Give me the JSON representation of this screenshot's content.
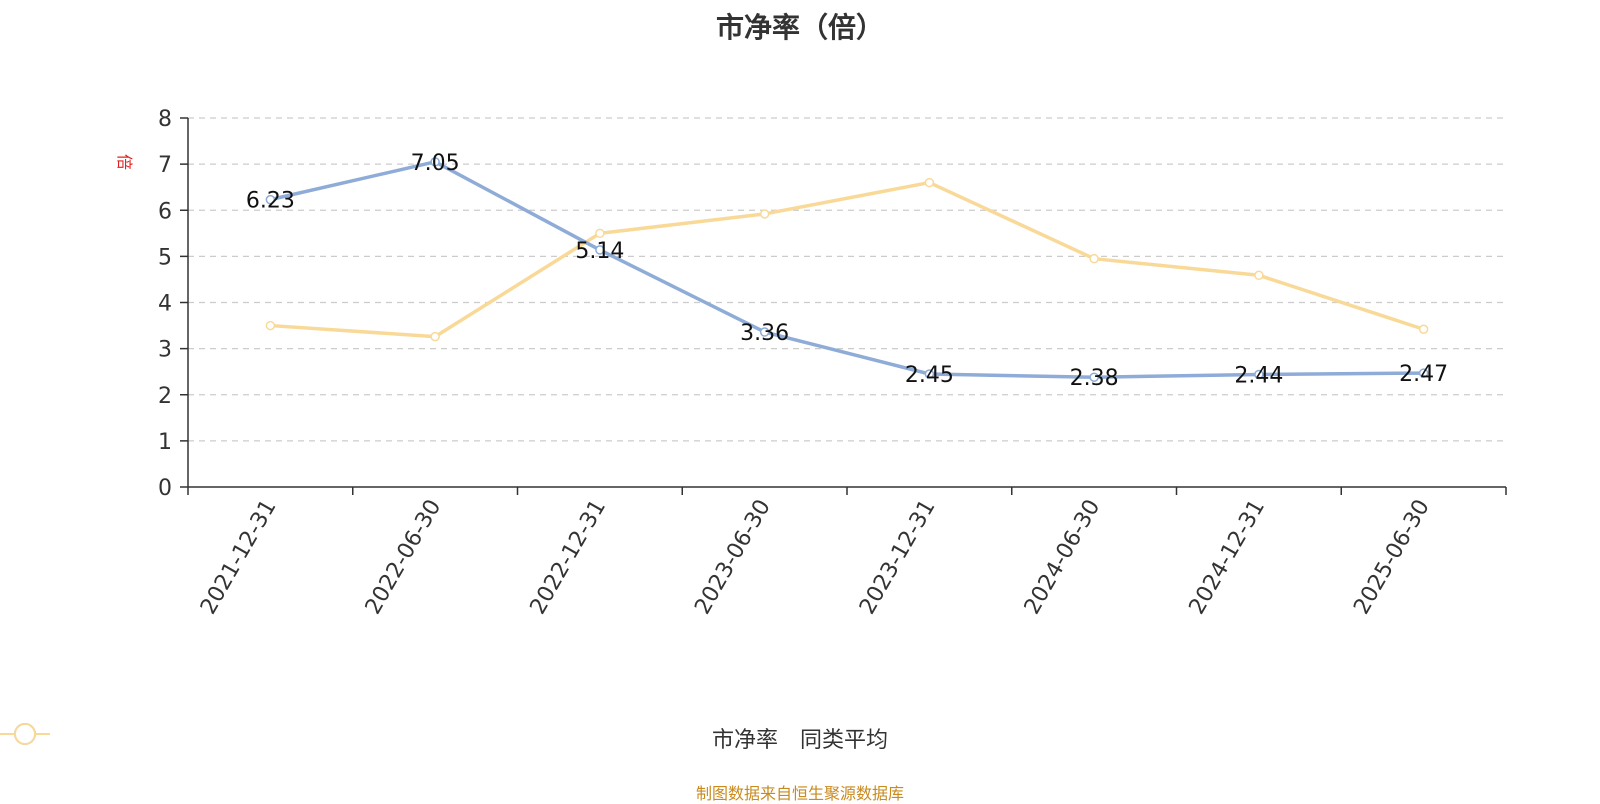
{
  "chart_data": {
    "type": "line",
    "title": "市净率（倍）",
    "ylabel": "倍",
    "categories": [
      "2021-12-31",
      "2022-06-30",
      "2022-12-31",
      "2023-06-30",
      "2023-12-31",
      "2024-06-30",
      "2024-12-31",
      "2025-06-30"
    ],
    "ylim": [
      0,
      8
    ],
    "yticks": [
      0,
      1,
      2,
      3,
      4,
      5,
      6,
      7,
      8
    ],
    "grid": true,
    "legend_position": "bottom",
    "series": [
      {
        "name": "市净率",
        "color": "#8eacd7",
        "values": [
          6.23,
          7.05,
          5.14,
          3.36,
          2.45,
          2.38,
          2.44,
          2.47
        ],
        "show_labels": true
      },
      {
        "name": "同类平均",
        "color": "#f9d998",
        "values": [
          3.5,
          3.26,
          5.5,
          5.92,
          6.6,
          4.95,
          4.59,
          3.42
        ],
        "show_labels": false
      }
    ]
  },
  "source_note": "制图数据来自恒生聚源数据库"
}
